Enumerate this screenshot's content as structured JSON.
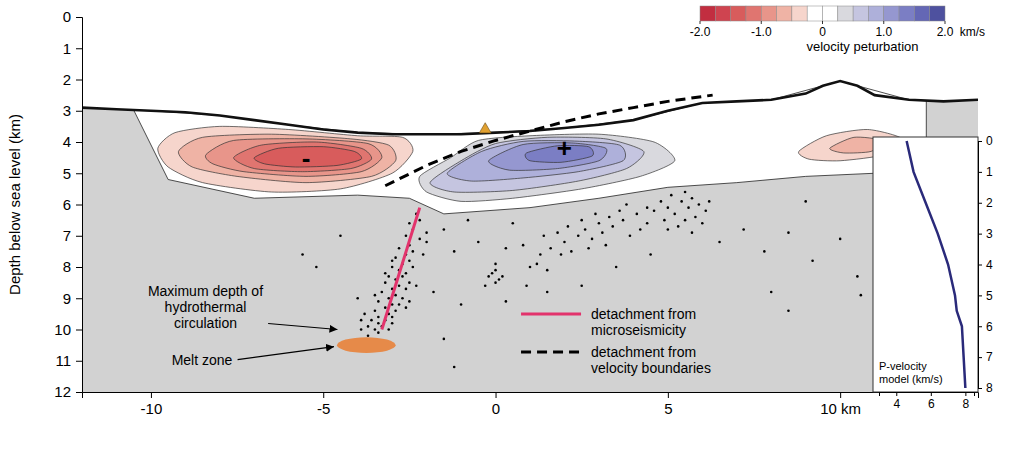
{
  "chart_data": {
    "type": "cross-section",
    "ylabel": "Depth below sea level (km)",
    "xlim": [
      -12,
      14
    ],
    "xticks": [
      -10,
      -5,
      0,
      5,
      {
        "value": 10,
        "label": "10 km"
      }
    ],
    "ylim": [
      0,
      12
    ],
    "yticks": [
      0,
      1,
      2,
      3,
      4,
      5,
      6,
      7,
      8,
      9,
      10,
      11,
      12
    ],
    "topography": {
      "color": "#111111",
      "x": [
        -12,
        -11,
        -10,
        -9,
        -8,
        -7,
        -6,
        -5,
        -4,
        -3,
        -2,
        -1,
        0,
        1,
        2,
        3,
        4,
        5,
        6,
        7,
        8,
        9,
        9.5,
        10,
        10.5,
        11,
        12,
        13,
        14
      ],
      "y": [
        2.9,
        2.95,
        3.0,
        3.05,
        3.15,
        3.3,
        3.45,
        3.6,
        3.7,
        3.75,
        3.75,
        3.75,
        3.7,
        3.65,
        3.55,
        3.45,
        3.3,
        3.0,
        2.75,
        2.7,
        2.65,
        2.45,
        2.2,
        2.05,
        2.2,
        2.5,
        2.65,
        2.7,
        2.65
      ]
    },
    "model_extent": {
      "x": [
        -10.5,
        -10,
        -8,
        -6,
        -4,
        -2,
        0,
        2,
        4,
        6,
        8,
        10,
        12,
        12.5,
        12.5,
        11,
        9,
        7,
        5,
        3,
        1,
        -1.5,
        -2.5,
        -4,
        -7,
        -9.5
      ],
      "y": [
        2.98,
        3.0,
        3.15,
        3.45,
        3.7,
        3.75,
        3.7,
        3.55,
        3.3,
        2.75,
        2.65,
        2.05,
        2.65,
        2.68,
        4.9,
        5.0,
        5.1,
        5.3,
        5.45,
        5.8,
        6.1,
        6.3,
        5.8,
        5.7,
        5.8,
        5.2
      ]
    },
    "contours": [
      {
        "value": -0.25,
        "x": [
          -9.8,
          -9.3,
          -8,
          -6,
          -4,
          -2.7,
          -2.4,
          -3,
          -4.5,
          -6.5,
          -8.5,
          -9.5
        ],
        "y": [
          4.2,
          3.7,
          3.5,
          3.6,
          3.8,
          3.85,
          4.3,
          5.0,
          5.5,
          5.6,
          5.3,
          4.8
        ]
      },
      {
        "value": -0.5,
        "x": [
          -9.2,
          -8.5,
          -6.5,
          -4.2,
          -3.1,
          -2.9,
          -3.6,
          -5.5,
          -7.5,
          -8.8
        ],
        "y": [
          4.3,
          3.85,
          3.75,
          3.9,
          4.1,
          4.6,
          5.1,
          5.3,
          5.1,
          4.8
        ]
      },
      {
        "value": -0.75,
        "x": [
          -8.4,
          -7.6,
          -5.5,
          -3.7,
          -3.3,
          -3.9,
          -5.5,
          -7.3,
          -8.2
        ],
        "y": [
          4.4,
          3.95,
          3.9,
          4.05,
          4.5,
          4.95,
          5.1,
          4.95,
          4.7
        ]
      },
      {
        "value": -1.0,
        "x": [
          -7.6,
          -6.8,
          -5.2,
          -3.9,
          -3.6,
          -4.2,
          -5.6,
          -7.0
        ],
        "y": [
          4.5,
          4.1,
          4.0,
          4.2,
          4.55,
          4.85,
          4.95,
          4.85
        ]
      },
      {
        "value": -1.25,
        "x": [
          -7.0,
          -6.3,
          -5.0,
          -4.1,
          -3.9,
          -4.6,
          -5.8,
          -6.7
        ],
        "y": [
          4.5,
          4.2,
          4.15,
          4.3,
          4.55,
          4.75,
          4.8,
          4.7
        ]
      },
      {
        "value": 0.25,
        "x": [
          -2.2,
          -1.3,
          -0.5,
          1,
          3,
          4.6,
          5.2,
          4.2,
          2.5,
          0.5,
          -1,
          -2.0
        ],
        "y": [
          5.1,
          4.5,
          3.95,
          3.8,
          3.75,
          4.0,
          4.6,
          5.1,
          5.5,
          5.8,
          5.9,
          5.6
        ]
      },
      {
        "value": 0.5,
        "x": [
          -1.9,
          -1,
          0,
          1.5,
          3.2,
          4.3,
          3.8,
          2.4,
          0.5,
          -1.2
        ],
        "y": [
          5.3,
          4.6,
          4.05,
          3.85,
          3.9,
          4.3,
          4.85,
          5.25,
          5.55,
          5.6
        ]
      },
      {
        "value": 0.75,
        "x": [
          -1.4,
          -0.4,
          0.8,
          2.3,
          3.6,
          3.7,
          2.4,
          0.8,
          -0.7
        ],
        "y": [
          5.0,
          4.3,
          3.98,
          3.97,
          4.1,
          4.6,
          4.95,
          5.15,
          5.25
        ]
      },
      {
        "value": 1.0,
        "x": [
          -0.2,
          0.8,
          2.2,
          3.2,
          3.0,
          1.8,
          0.4
        ],
        "y": [
          4.6,
          4.08,
          4.03,
          4.2,
          4.6,
          4.85,
          4.9
        ]
      },
      {
        "value": 1.25,
        "x": [
          0.9,
          1.8,
          2.7,
          2.8,
          1.9,
          1.0
        ],
        "y": [
          4.35,
          4.12,
          4.15,
          4.45,
          4.65,
          4.6
        ]
      },
      {
        "value": -0.25,
        "x": [
          8.8,
          9.6,
          10.8,
          11.8,
          11.3,
          10.0,
          9.1
        ],
        "y": [
          4.3,
          3.8,
          3.6,
          3.9,
          4.4,
          4.6,
          4.55
        ]
      },
      {
        "value": -0.5,
        "x": [
          9.7,
          10.4,
          11.2,
          10.9,
          10.1
        ],
        "y": [
          4.2,
          3.85,
          3.95,
          4.3,
          4.35
        ]
      }
    ],
    "signs": [
      {
        "label": "-",
        "x": -5.5,
        "y": 4.5
      },
      {
        "label": "+",
        "x": 2,
        "y": 4.2
      }
    ],
    "seismicity": {
      "color": "#000000",
      "marker": "dot",
      "x": [
        -2.3,
        -2.2,
        -2.5,
        -2.4,
        -2.6,
        -2.2,
        -2.5,
        -2.8,
        -2.4,
        -2.6,
        -2.9,
        -2.5,
        -2.7,
        -3.0,
        -2.4,
        -2.8,
        -2.6,
        -3.1,
        -2.7,
        -2.9,
        -2.5,
        -3.2,
        -2.8,
        -3.0,
        -2.6,
        -3.3,
        -2.9,
        -3.1,
        -2.7,
        -3.4,
        -3.0,
        -2.8,
        -3.2,
        -3.5,
        -2.9,
        -3.1,
        -3.4,
        -3.0,
        -3.6,
        -3.2,
        -3.4,
        -3.0,
        -3.7,
        -3.3,
        -3.5,
        -3.9,
        -3.4,
        -2.3,
        -2.0,
        -2.6,
        -3.5,
        -3.0,
        -2.0,
        -3.8,
        -3.7,
        -2.5,
        -3.2,
        -2.1,
        -3.9,
        -3.1,
        0.0,
        -0.2,
        0.1,
        0.0,
        -0.1,
        0.2,
        0.0,
        -0.3,
        1.0,
        1.3,
        1.6,
        1.9,
        2.0,
        2.2,
        2.4,
        2.6,
        2.8,
        3.0,
        3.1,
        3.3,
        3.4,
        2.5,
        1.2,
        1.5,
        0.8,
        1.8,
        2.9,
        3.6,
        2.1,
        1.4,
        2.7,
        0.9,
        3.2,
        4.6,
        4.8,
        5.0,
        5.1,
        5.2,
        5.4,
        5.5,
        5.6,
        5.7,
        5.8,
        5.9,
        6.0,
        6.1,
        5.3,
        4.9,
        5.5,
        5.0,
        5.7,
        4.4,
        6.2,
        3.8,
        4.1,
        4.2,
        3.9,
        4.4,
        3.7,
        -1.5,
        -1.2,
        -0.8,
        -0.5,
        0.5,
        0.3,
        -1.8,
        -1.0,
        0.3,
        1.5,
        2.5,
        3.5,
        4.5,
        6.5,
        7.2,
        7.8,
        8.5,
        9.2,
        10.0,
        10.5,
        10.6,
        8.0,
        -4.5,
        -5.2,
        -4.0,
        -5.6,
        -1.2,
        -1.5,
        8.5,
        9.0
      ],
      "y": [
        6.3,
        6.5,
        6.6,
        6.8,
        7.0,
        7.1,
        7.3,
        7.4,
        7.5,
        7.6,
        7.7,
        7.8,
        7.9,
        8.0,
        8.0,
        8.1,
        8.2,
        8.3,
        8.3,
        8.4,
        8.5,
        8.5,
        8.6,
        8.7,
        8.7,
        8.8,
        8.9,
        9.0,
        9.0,
        9.1,
        9.2,
        9.2,
        9.3,
        9.4,
        9.4,
        9.5,
        9.6,
        9.6,
        9.7,
        9.7,
        9.8,
        9.8,
        9.9,
        9.9,
        10.0,
        10.0,
        10.1,
        8.6,
        7.2,
        9.3,
        8.9,
        7.8,
        6.9,
        9.5,
        10.2,
        9.1,
        8.2,
        7.6,
        9.7,
        10.0,
        8.1,
        8.3,
        8.4,
        8.5,
        8.2,
        8.3,
        7.9,
        8.6,
        8.0,
        7.6,
        7.4,
        7.6,
        7.2,
        7.5,
        7.0,
        6.8,
        7.1,
        6.6,
        6.9,
        6.4,
        6.7,
        6.5,
        7.9,
        8.1,
        7.3,
        6.9,
        6.3,
        6.2,
        6.7,
        7.0,
        7.4,
        8.6,
        7.3,
        6.2,
        5.9,
        6.1,
        5.7,
        6.3,
        5.9,
        6.5,
        6.1,
        5.8,
        6.4,
        6.0,
        6.6,
        6.2,
        6.7,
        6.5,
        5.6,
        6.8,
        6.9,
        6.6,
        5.9,
        6.0,
        6.3,
        6.8,
        7.0,
        6.1,
        6.5,
        6.8,
        7.5,
        6.5,
        7.2,
        6.6,
        7.4,
        8.8,
        9.2,
        9.1,
        8.8,
        8.6,
        8.0,
        7.6,
        7.2,
        6.8,
        7.5,
        6.9,
        7.8,
        7.1,
        8.3,
        8.9,
        8.8,
        7.0,
        8.0,
        9.0,
        7.6,
        11.2,
        10.3,
        9.4,
        5.9
      ]
    },
    "series": [
      {
        "name": "detachment from microseismicity",
        "color": "#e2336c",
        "line_style": "solid",
        "x": [
          -3.3,
          -2.2
        ],
        "y": [
          10.0,
          6.1
        ]
      },
      {
        "name": "detachment from velocity boundaries",
        "color": "#000000",
        "line_style": "dashed",
        "x": [
          -3.2,
          -2.0,
          -1.0,
          0.0,
          1.0,
          2.0,
          3.0,
          4.0,
          5.0,
          6.3
        ],
        "y": [
          5.4,
          4.75,
          4.3,
          3.95,
          3.65,
          3.35,
          3.1,
          2.9,
          2.7,
          2.5
        ]
      }
    ],
    "legend": "bottom",
    "melt_zone": {
      "x": [
        -4.6,
        -2.9
      ],
      "y": [
        10.25,
        10.75
      ],
      "color": "#e8823a"
    },
    "markers": [
      {
        "x": -0.3,
        "y": 3.6,
        "color": "#e0a030",
        "marker": "triangle"
      }
    ],
    "annotations": [
      {
        "text": "Maximum depth of hydrothermal circulation",
        "x": -4.5,
        "y": 10.0
      },
      {
        "text": "Melt zone",
        "x": -4.6,
        "y": 10.55
      }
    ],
    "colorbar": {
      "title": "velocity peturbation",
      "unit": "km/s",
      "lim": [
        -2,
        2
      ],
      "ticks": [
        {
          "value": -2,
          "label": "-2.0"
        },
        {
          "value": -1,
          "label": "-1.0"
        },
        0,
        {
          "value": 1,
          "label": "1.0"
        },
        {
          "value": 2,
          "label": "2.0"
        }
      ],
      "bins": [
        -2,
        -1.75,
        -1.5,
        -1.25,
        -1,
        -0.75,
        -0.5,
        -0.25,
        0,
        0.25,
        0.5,
        0.75,
        1,
        1.25,
        1.5,
        1.75,
        2
      ],
      "colors": [
        "#c22e40",
        "#cf4450",
        "#d85c5c",
        "#e07570",
        "#e8958a",
        "#efb3a5",
        "#f6d5cc",
        "#ffffff",
        "#ffffff",
        "#d9d9de",
        "#c5c5e0",
        "#aeb0da",
        "#9597d0",
        "#7b7ec4",
        "#6467b5",
        "#4e519f"
      ]
    },
    "inset": {
      "type": "line",
      "xlabel": "P-velocity model (km/s)",
      "color": "#2a2a7a",
      "xlim": [
        3,
        8.5
      ],
      "xticks": [
        4,
        6,
        8
      ],
      "ylim": [
        0,
        8
      ],
      "yticks": [
        0,
        1,
        2,
        3,
        4,
        5,
        6,
        7,
        8
      ],
      "x": [
        4.6,
        5.0,
        5.7,
        6.4,
        7.0,
        7.4,
        7.5,
        7.8,
        7.9,
        8.0
      ],
      "y": [
        0,
        1,
        2,
        3,
        4,
        5,
        5.5,
        6,
        7,
        8
      ]
    }
  }
}
